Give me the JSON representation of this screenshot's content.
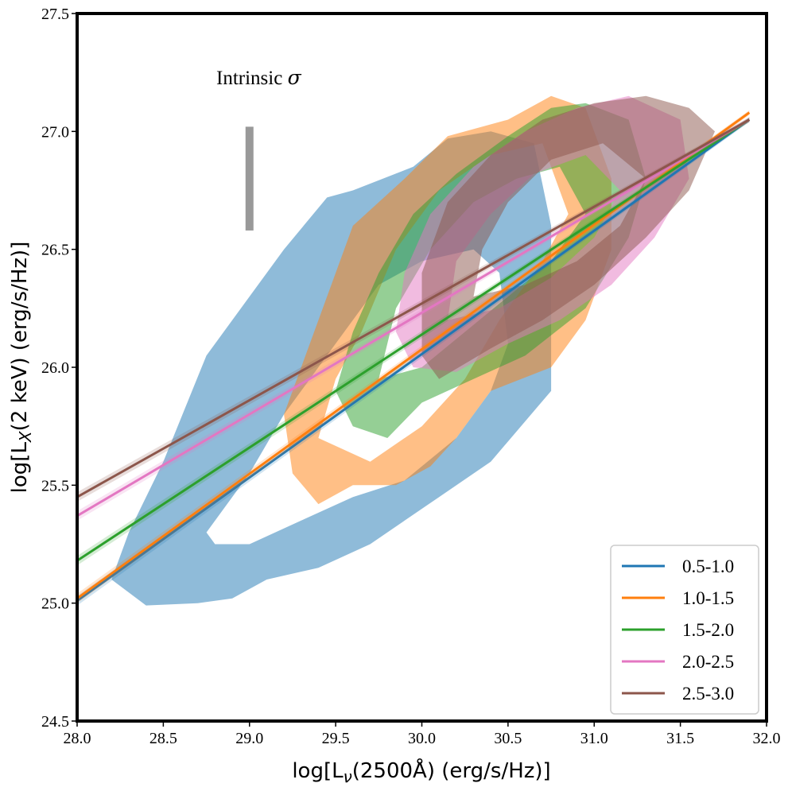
{
  "chart_data": {
    "type": "line",
    "xlabel_main": "log[L",
    "xlabel_sub": "ν",
    "xlabel_rest": "(2500Å) (erg/s/Hz)]",
    "ylabel_main": "log[L",
    "ylabel_sub": "X",
    "ylabel_rest": "(2 keV) (erg/s/Hz)]",
    "xlim": [
      28.0,
      32.0
    ],
    "ylim": [
      24.5,
      27.5
    ],
    "xticks": [
      "28.0",
      "28.5",
      "29.0",
      "29.5",
      "30.0",
      "30.5",
      "31.0",
      "31.5",
      "32.0"
    ],
    "yticks": [
      "24.5",
      "25.0",
      "25.5",
      "26.0",
      "26.5",
      "27.0",
      "27.5"
    ],
    "xtick_values": [
      28.0,
      28.5,
      29.0,
      29.5,
      30.0,
      30.5,
      31.0,
      31.5,
      32.0
    ],
    "ytick_values": [
      24.5,
      25.0,
      25.5,
      26.0,
      26.5,
      27.0,
      27.5
    ],
    "grid": false,
    "legend_position": "bottom-right",
    "annotation": {
      "text": "Intrinsic ",
      "symbol": "σ",
      "bar_x": 29.0,
      "bar_y": [
        26.58,
        27.02
      ],
      "bar_color": "#999999"
    },
    "series": [
      {
        "name": "0.5-1.0",
        "color": "#1f77b4",
        "line_x": [
          28.0,
          31.9
        ],
        "line_y": [
          25.01,
          27.05
        ],
        "contour_outer": [
          [
            28.2,
            25.1
          ],
          [
            28.4,
            24.99
          ],
          [
            28.7,
            25.0
          ],
          [
            28.9,
            25.02
          ],
          [
            29.1,
            25.1
          ],
          [
            29.4,
            25.15
          ],
          [
            29.7,
            25.25
          ],
          [
            30.1,
            25.45
          ],
          [
            30.4,
            25.6
          ],
          [
            30.75,
            25.9
          ],
          [
            30.75,
            26.6
          ],
          [
            30.65,
            26.95
          ],
          [
            30.4,
            27.0
          ],
          [
            30.15,
            26.97
          ],
          [
            29.95,
            26.85
          ],
          [
            29.6,
            26.75
          ],
          [
            29.45,
            26.72
          ],
          [
            29.2,
            26.5
          ],
          [
            29.0,
            26.3
          ],
          [
            28.75,
            26.05
          ],
          [
            28.5,
            25.6
          ],
          [
            28.3,
            25.3
          ]
        ],
        "contour_inner": [
          [
            28.75,
            25.3
          ],
          [
            28.8,
            25.25
          ],
          [
            29.0,
            25.25
          ],
          [
            29.3,
            25.35
          ],
          [
            29.6,
            25.45
          ],
          [
            29.9,
            25.52
          ],
          [
            30.2,
            25.7
          ],
          [
            30.4,
            25.9
          ],
          [
            30.5,
            26.1
          ],
          [
            30.45,
            26.4
          ],
          [
            30.3,
            26.5
          ],
          [
            30.0,
            26.45
          ],
          [
            29.75,
            26.35
          ],
          [
            29.5,
            26.1
          ],
          [
            29.2,
            25.8
          ],
          [
            29.0,
            25.55
          ]
        ]
      },
      {
        "name": "1.0-1.5",
        "color": "#ff7f0e",
        "line_x": [
          28.0,
          31.9
        ],
        "line_y": [
          25.02,
          27.08
        ],
        "contour_outer": [
          [
            29.25,
            25.55
          ],
          [
            29.4,
            25.42
          ],
          [
            29.6,
            25.5
          ],
          [
            29.85,
            25.5
          ],
          [
            30.05,
            25.58
          ],
          [
            30.2,
            25.7
          ],
          [
            30.4,
            25.9
          ],
          [
            30.75,
            26.0
          ],
          [
            30.95,
            26.2
          ],
          [
            31.1,
            26.5
          ],
          [
            31.1,
            26.8
          ],
          [
            30.95,
            27.1
          ],
          [
            30.75,
            27.15
          ],
          [
            30.5,
            27.05
          ],
          [
            30.15,
            26.98
          ],
          [
            29.9,
            26.8
          ],
          [
            29.6,
            26.6
          ],
          [
            29.45,
            26.3
          ],
          [
            29.3,
            26.0
          ],
          [
            29.2,
            25.8
          ]
        ],
        "contour_inner": [
          [
            29.4,
            25.7
          ],
          [
            29.7,
            25.6
          ],
          [
            30.0,
            25.75
          ],
          [
            30.25,
            25.95
          ],
          [
            30.45,
            26.2
          ],
          [
            30.7,
            26.45
          ],
          [
            30.85,
            26.65
          ],
          [
            30.7,
            26.95
          ],
          [
            30.4,
            26.9
          ],
          [
            30.1,
            26.75
          ],
          [
            29.85,
            26.5
          ],
          [
            29.65,
            26.15
          ],
          [
            29.5,
            25.95
          ]
        ]
      },
      {
        "name": "1.5-2.0",
        "color": "#2ca02c",
        "line_x": [
          28.0,
          31.9
        ],
        "line_y": [
          25.18,
          27.05
        ],
        "contour_outer": [
          [
            29.5,
            25.9
          ],
          [
            29.6,
            25.75
          ],
          [
            29.8,
            25.7
          ],
          [
            30.0,
            25.85
          ],
          [
            30.3,
            25.95
          ],
          [
            30.6,
            26.05
          ],
          [
            30.95,
            26.25
          ],
          [
            31.2,
            26.55
          ],
          [
            31.3,
            26.8
          ],
          [
            31.2,
            27.05
          ],
          [
            30.95,
            27.12
          ],
          [
            30.75,
            27.1
          ],
          [
            30.5,
            26.98
          ],
          [
            30.2,
            26.82
          ],
          [
            29.95,
            26.65
          ],
          [
            29.75,
            26.4
          ],
          [
            29.6,
            26.15
          ]
        ],
        "contour_inner": [
          [
            29.75,
            25.95
          ],
          [
            30.0,
            26.0
          ],
          [
            30.25,
            26.15
          ],
          [
            30.5,
            26.3
          ],
          [
            30.75,
            26.45
          ],
          [
            30.95,
            26.65
          ],
          [
            30.8,
            26.85
          ],
          [
            30.55,
            26.8
          ],
          [
            30.3,
            26.7
          ],
          [
            30.05,
            26.5
          ],
          [
            29.85,
            26.25
          ]
        ]
      },
      {
        "name": "2.0-2.5",
        "color": "#e377c2",
        "line_x": [
          28.0,
          31.9
        ],
        "line_y": [
          25.37,
          27.05
        ],
        "contour_outer": [
          [
            29.85,
            26.15
          ],
          [
            29.95,
            26.0
          ],
          [
            30.2,
            25.98
          ],
          [
            30.5,
            26.1
          ],
          [
            30.8,
            26.2
          ],
          [
            31.1,
            26.35
          ],
          [
            31.35,
            26.55
          ],
          [
            31.55,
            26.8
          ],
          [
            31.5,
            27.05
          ],
          [
            31.2,
            27.15
          ],
          [
            30.9,
            27.1
          ],
          [
            30.6,
            27.0
          ],
          [
            30.3,
            26.85
          ],
          [
            30.05,
            26.65
          ],
          [
            29.9,
            26.4
          ]
        ],
        "contour_inner": [
          [
            30.15,
            26.2
          ],
          [
            30.45,
            26.25
          ],
          [
            30.75,
            26.38
          ],
          [
            31.0,
            26.55
          ],
          [
            31.15,
            26.75
          ],
          [
            30.95,
            26.9
          ],
          [
            30.65,
            26.82
          ],
          [
            30.4,
            26.65
          ],
          [
            30.2,
            26.45
          ]
        ]
      },
      {
        "name": "2.5-3.0",
        "color": "#8c564b",
        "line_x": [
          28.0,
          31.9
        ],
        "line_y": [
          25.45,
          27.05
        ],
        "contour_outer": [
          [
            30.0,
            26.05
          ],
          [
            30.1,
            25.95
          ],
          [
            30.4,
            26.08
          ],
          [
            30.7,
            26.2
          ],
          [
            31.0,
            26.35
          ],
          [
            31.3,
            26.55
          ],
          [
            31.55,
            26.75
          ],
          [
            31.7,
            27.0
          ],
          [
            31.55,
            27.1
          ],
          [
            31.3,
            27.15
          ],
          [
            31.0,
            27.12
          ],
          [
            30.7,
            27.05
          ],
          [
            30.4,
            26.9
          ],
          [
            30.15,
            26.7
          ],
          [
            30.0,
            26.4
          ]
        ],
        "contour_inner": [
          [
            30.3,
            26.3
          ],
          [
            30.6,
            26.35
          ],
          [
            30.9,
            26.45
          ],
          [
            31.15,
            26.6
          ],
          [
            31.3,
            26.8
          ],
          [
            31.05,
            26.95
          ],
          [
            30.75,
            26.88
          ],
          [
            30.5,
            26.7
          ],
          [
            30.35,
            26.5
          ]
        ]
      }
    ]
  }
}
